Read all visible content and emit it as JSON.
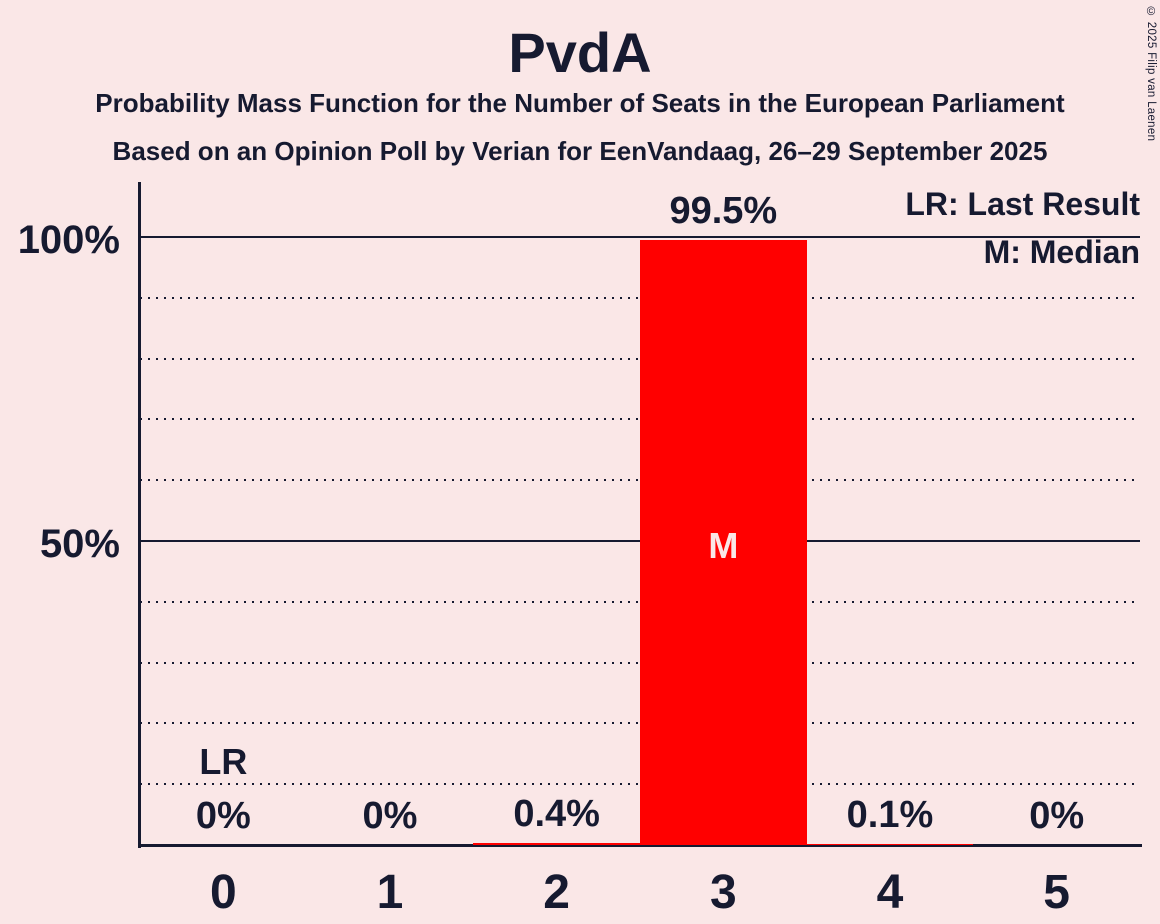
{
  "title": "PvdA",
  "subtitle1": "Probability Mass Function for the Number of Seats in the European Parliament",
  "subtitle2": "Based on an Opinion Poll by Verian for EenVandaag, 26–29 September 2025",
  "copyright": "© 2025 Filip van Laenen",
  "legend": {
    "lr": "LR: Last Result",
    "m": "M: Median"
  },
  "colors": {
    "background": "#fae7e7",
    "bar": "#ff0000",
    "text": "#161a30",
    "bar_label": "#fae7e7"
  },
  "chart_data": {
    "type": "bar",
    "title": "PvdA",
    "categories": [
      "0",
      "1",
      "2",
      "3",
      "4",
      "5"
    ],
    "values": [
      0,
      0,
      0.4,
      99.5,
      0.1,
      0
    ],
    "value_labels": [
      "0%",
      "0%",
      "0.4%",
      "99.5%",
      "0.1%",
      "0%"
    ],
    "ylim": [
      0,
      100
    ],
    "y_ticks": [
      {
        "label": "100%",
        "value": 100
      },
      {
        "label": "50%",
        "value": 50
      }
    ],
    "gridlines_dotted_pct": [
      10,
      20,
      30,
      40,
      60,
      70,
      80,
      90
    ],
    "gridlines_solid_pct": [
      50,
      100
    ],
    "legend_position": "top-right",
    "grid": "on",
    "last_result_category": "0",
    "last_result_marker": "LR",
    "median_category": "3",
    "median_marker": "M",
    "bar_color": "#ff0000"
  }
}
